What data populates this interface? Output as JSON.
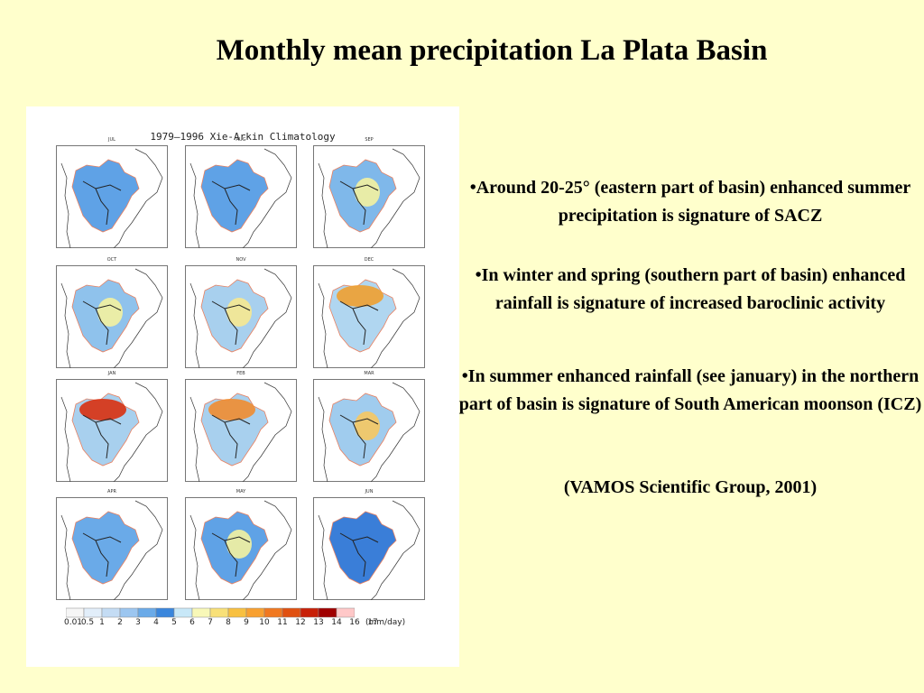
{
  "slide": {
    "title": "Monthly mean precipitation La Plata Basin",
    "bullets": [
      "•Around 20-25° (eastern part of basin) enhanced summer precipitation is signature of SACZ",
      "•In winter and spring (southern part of basin) enhanced rainfall is signature of increased baroclinic activity",
      "•In summer enhanced rainfall (see january) in the northern part of basin is signature of South American moonson (ICZ)"
    ],
    "citation": "(VAMOS Scientific Group, 2001)"
  },
  "figure": {
    "title": "1979–1996 Xie-Arkin Climatology",
    "panels": [
      {
        "label": "JUL",
        "fill": "#5fa2e6",
        "accent": "none"
      },
      {
        "label": "AUG",
        "fill": "#5fa2e6",
        "accent": "none"
      },
      {
        "label": "SEP",
        "fill": "#7fb8ea",
        "accent": "#f4f2a0"
      },
      {
        "label": "OCT",
        "fill": "#8fc2ec",
        "accent": "#f4f2a0"
      },
      {
        "label": "NOV",
        "fill": "#a8d0ee",
        "accent": "#f6e890"
      },
      {
        "label": "DEC",
        "fill": "#b0d6f0",
        "accent": "#f0a030"
      },
      {
        "label": "JAN",
        "fill": "#a8d0ee",
        "accent": "#d83010"
      },
      {
        "label": "FEB",
        "fill": "#a8d0ee",
        "accent": "#f08c30"
      },
      {
        "label": "MAR",
        "fill": "#a0ccee",
        "accent": "#f6c860"
      },
      {
        "label": "APR",
        "fill": "#6aaae8",
        "accent": "none"
      },
      {
        "label": "MAY",
        "fill": "#5fa2e6",
        "accent": "#f4f2a0"
      },
      {
        "label": "JUN",
        "fill": "#3a7ed8",
        "accent": "none"
      }
    ],
    "colorbar": {
      "colors": [
        "#f6f6f6",
        "#e2eefa",
        "#c4dcf4",
        "#9cc6f0",
        "#6aaae8",
        "#3a86dc",
        "#c8e8f8",
        "#f8f8b8",
        "#f8e078",
        "#f8c040",
        "#f8a030",
        "#f07820",
        "#e05010",
        "#c82008",
        "#a00000",
        "#ffc8c8"
      ],
      "ticks": [
        "0.01",
        "0.5",
        "1",
        "2",
        "3",
        "4",
        "5",
        "6",
        "7",
        "8",
        "9",
        "10",
        "11",
        "12",
        "13",
        "14",
        "16",
        "17"
      ],
      "unit": "(mm/day)"
    }
  }
}
